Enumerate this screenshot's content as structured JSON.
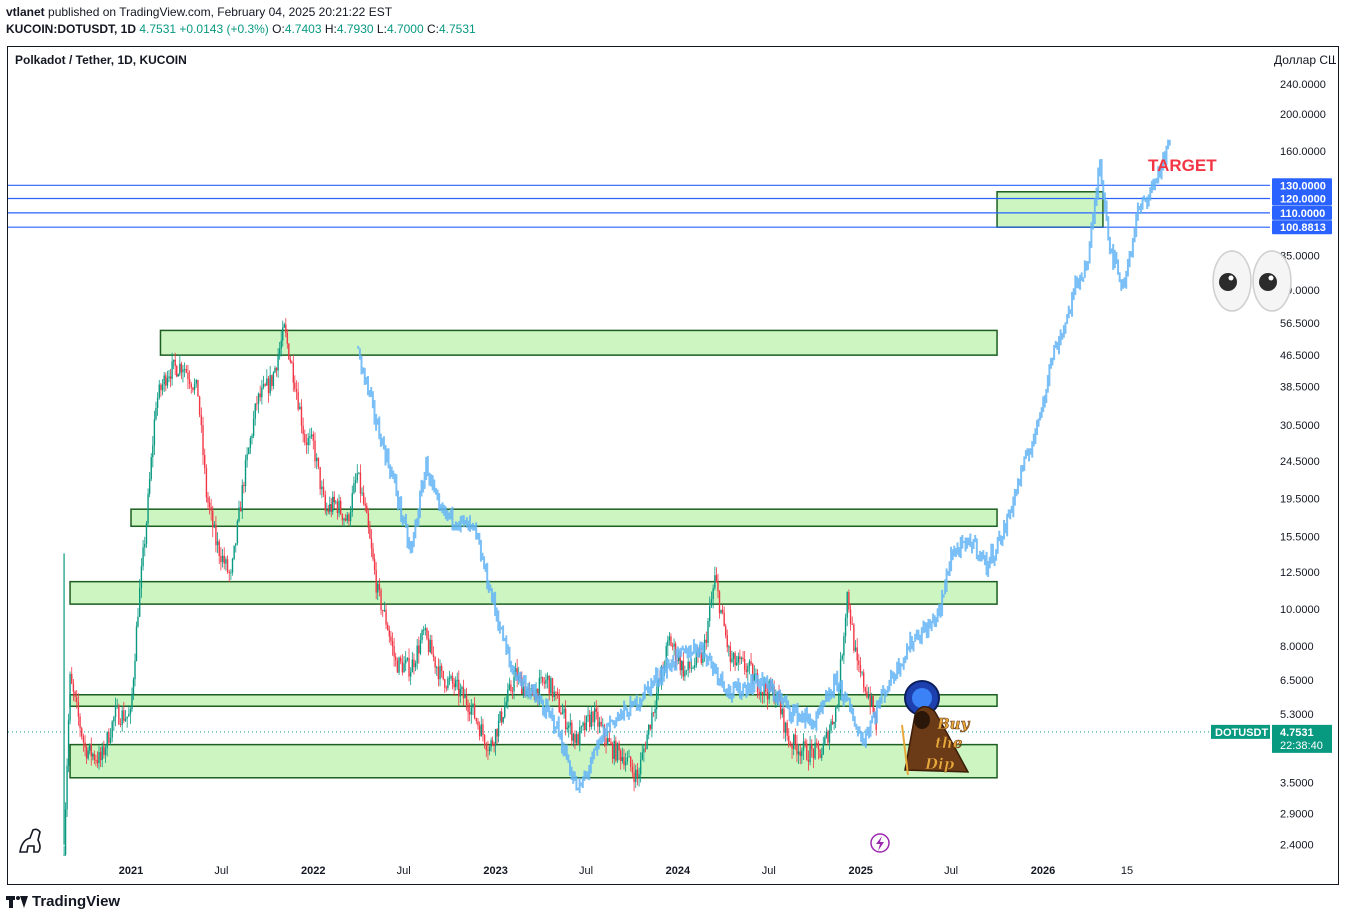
{
  "header": {
    "publisher": "vtlanet",
    "published_text": "published on TradingView.com, February 04, 2025 20:21:22 EST",
    "symbol_line": {
      "symbol": "KUCOIN:DOTUSDT, 1D",
      "last": "4.7531",
      "change": "+0.0143 (+0.3%)",
      "o_label": "O:",
      "o": "4.7403",
      "h_label": "H:",
      "h": "4.7930",
      "l_label": "L:",
      "l": "4.7000",
      "c_label": "C:",
      "c": "4.7531"
    }
  },
  "chart_title": "Polkadot / Tether, 1D, KUCOIN",
  "currency_label": "Доллар США",
  "footer_brand": "TradingView",
  "colors": {
    "up": "#089981",
    "down": "#f23645",
    "projection": "#64b5f6",
    "zone_fill": "#ccf5c2",
    "zone_border": "#1b5e20",
    "hline": "#2962ff",
    "target_text": "#f23645",
    "price_badge": "#089981"
  },
  "chart_data": {
    "type": "candlestick",
    "scale": "log",
    "x_ticks": [
      "2021",
      "Jul",
      "2022",
      "Jul",
      "2023",
      "Jul",
      "2024",
      "Jul",
      "2025",
      "Jul",
      "2026",
      "15"
    ],
    "y_ticks": [
      "240.0000",
      "200.0000",
      "160.0000",
      "85.0000",
      "69.0000",
      "56.5000",
      "46.5000",
      "38.5000",
      "30.5000",
      "24.5000",
      "19.5000",
      "15.5000",
      "12.5000",
      "10.0000",
      "8.0000",
      "6.5000",
      "5.3000",
      "3.5000",
      "2.9000",
      "2.4000"
    ],
    "horizontal_levels": [
      "130.0000",
      "120.0000",
      "110.0000",
      "100.8813"
    ],
    "last_price": {
      "symbol": "DOTUSDT",
      "value": "4.7531",
      "countdown": "22:38:40"
    },
    "zones": [
      {
        "from_date": "2021-03",
        "to_date": "2025-10",
        "low": 46.5,
        "high": 54
      },
      {
        "from_date": "2021-01",
        "to_date": "2025-10",
        "low": 16.5,
        "high": 18.3
      },
      {
        "from_date": "2020-09",
        "to_date": "2025-10",
        "low": 10.3,
        "high": 11.8
      },
      {
        "from_date": "2020-09",
        "to_date": "2025-10",
        "low": 5.55,
        "high": 5.95
      },
      {
        "from_date": "2020-09",
        "to_date": "2025-10",
        "low": 3.6,
        "high": 4.4
      },
      {
        "from_date": "2025-10",
        "to_date": "2026-05",
        "low": 100.88,
        "high": 125
      }
    ],
    "annotations": [
      {
        "text": "TARGET"
      },
      {
        "text": "Buy the Dip"
      }
    ],
    "history_path": [
      [
        "2020-08-20",
        2.4,
        14
      ],
      [
        "2020-09-01",
        6.5
      ],
      [
        "2020-10-01",
        4.3
      ],
      [
        "2020-11-01",
        4.0
      ],
      [
        "2020-12-01",
        5.3
      ],
      [
        "2020-12-31",
        5.2
      ],
      [
        "2021-01-15",
        10.0
      ],
      [
        "2021-02-01",
        17.0
      ],
      [
        "2021-02-20",
        35.0
      ],
      [
        "2021-03-15",
        42.0
      ],
      [
        "2021-04-15",
        44.0
      ],
      [
        "2021-05-15",
        37.0
      ],
      [
        "2021-06-01",
        20.0
      ],
      [
        "2021-06-20",
        15.0
      ],
      [
        "2021-07-20",
        12.0
      ],
      [
        "2021-08-15",
        22.0
      ],
      [
        "2021-09-10",
        35.0
      ],
      [
        "2021-10-10",
        40.0
      ],
      [
        "2021-11-04",
        54.0
      ],
      [
        "2021-11-25",
        40.0
      ],
      [
        "2021-12-15",
        28.0
      ],
      [
        "2022-01-01",
        27.0
      ],
      [
        "2022-01-25",
        18.0
      ],
      [
        "2022-02-15",
        19.0
      ],
      [
        "2022-03-10",
        17.0
      ],
      [
        "2022-03-30",
        22.5
      ],
      [
        "2022-04-15",
        18.0
      ],
      [
        "2022-05-10",
        11.0
      ],
      [
        "2022-05-30",
        9.0
      ],
      [
        "2022-06-15",
        7.2
      ],
      [
        "2022-07-15",
        7.0
      ],
      [
        "2022-08-10",
        8.6
      ],
      [
        "2022-09-15",
        6.6
      ],
      [
        "2022-10-10",
        6.3
      ],
      [
        "2022-11-10",
        5.6
      ],
      [
        "2022-12-20",
        4.3
      ],
      [
        "2023-01-10",
        5.1
      ],
      [
        "2023-02-10",
        6.7
      ],
      [
        "2023-03-10",
        5.9
      ],
      [
        "2023-04-15",
        6.5
      ],
      [
        "2023-05-15",
        5.3
      ],
      [
        "2023-06-12",
        4.5
      ],
      [
        "2023-07-15",
        5.3
      ],
      [
        "2023-08-20",
        4.3
      ],
      [
        "2023-09-15",
        4.1
      ],
      [
        "2023-10-12",
        3.6
      ],
      [
        "2023-11-10",
        5.3
      ],
      [
        "2023-12-15",
        8.3
      ],
      [
        "2024-01-15",
        6.8
      ],
      [
        "2024-02-20",
        7.5
      ],
      [
        "2024-03-15",
        12.0
      ],
      [
        "2024-04-15",
        7.3
      ],
      [
        "2024-05-20",
        7.0
      ],
      [
        "2024-06-15",
        6.2
      ],
      [
        "2024-07-15",
        6.0
      ],
      [
        "2024-08-10",
        4.5
      ],
      [
        "2024-09-15",
        4.2
      ],
      [
        "2024-10-15",
        4.2
      ],
      [
        "2024-11-15",
        5.6
      ],
      [
        "2024-12-05",
        11.0
      ],
      [
        "2024-12-25",
        7.0
      ],
      [
        "2025-01-20",
        5.8
      ],
      [
        "2025-02-04",
        4.75
      ]
    ],
    "projection_path": [
      [
        "2022-04-01",
        47.0
      ],
      [
        "2022-05-10",
        30.0
      ],
      [
        "2022-06-10",
        22.0
      ],
      [
        "2022-07-15",
        14.0
      ],
      [
        "2022-08-15",
        24.0
      ],
      [
        "2022-09-10",
        18.0
      ],
      [
        "2022-10-20",
        17.0
      ],
      [
        "2022-11-20",
        16.0
      ],
      [
        "2022-12-31",
        10.0
      ],
      [
        "2023-02-01",
        7.0
      ],
      [
        "2023-03-15",
        6.0
      ],
      [
        "2023-05-01",
        5.0
      ],
      [
        "2023-06-15",
        3.3
      ],
      [
        "2023-08-15",
        5.0
      ],
      [
        "2023-10-01",
        5.5
      ],
      [
        "2023-11-15",
        6.5
      ],
      [
        "2024-01-01",
        7.5
      ],
      [
        "2024-02-15",
        8.0
      ],
      [
        "2024-04-15",
        6.0
      ],
      [
        "2024-06-15",
        6.5
      ],
      [
        "2024-08-15",
        5.4
      ],
      [
        "2024-10-01",
        5.0
      ],
      [
        "2024-11-15",
        6.5
      ],
      [
        "2025-01-05",
        4.5
      ],
      [
        "2025-02-15",
        6.0
      ],
      [
        "2025-03-15",
        7.0
      ],
      [
        "2025-04-20",
        8.5
      ],
      [
        "2025-05-20",
        9.0
      ],
      [
        "2025-06-10",
        10.0
      ],
      [
        "2025-07-01",
        14.0
      ],
      [
        "2025-08-15",
        15.0
      ],
      [
        "2025-09-10",
        13.0
      ],
      [
        "2025-10-15",
        16.0
      ],
      [
        "2025-11-15",
        22.0
      ],
      [
        "2025-12-20",
        30.0
      ],
      [
        "2026-01-20",
        46.5
      ],
      [
        "2026-02-15",
        56.5
      ],
      [
        "2026-03-10",
        72.0
      ],
      [
        "2026-04-01",
        82.0
      ],
      [
        "2026-04-25",
        150.0
      ],
      [
        "2026-05-15",
        90.0
      ],
      [
        "2026-06-10",
        70.0
      ],
      [
        "2026-07-10",
        110.0
      ],
      [
        "2026-08-10",
        130.0
      ],
      [
        "2026-09-15",
        170.0
      ]
    ]
  }
}
